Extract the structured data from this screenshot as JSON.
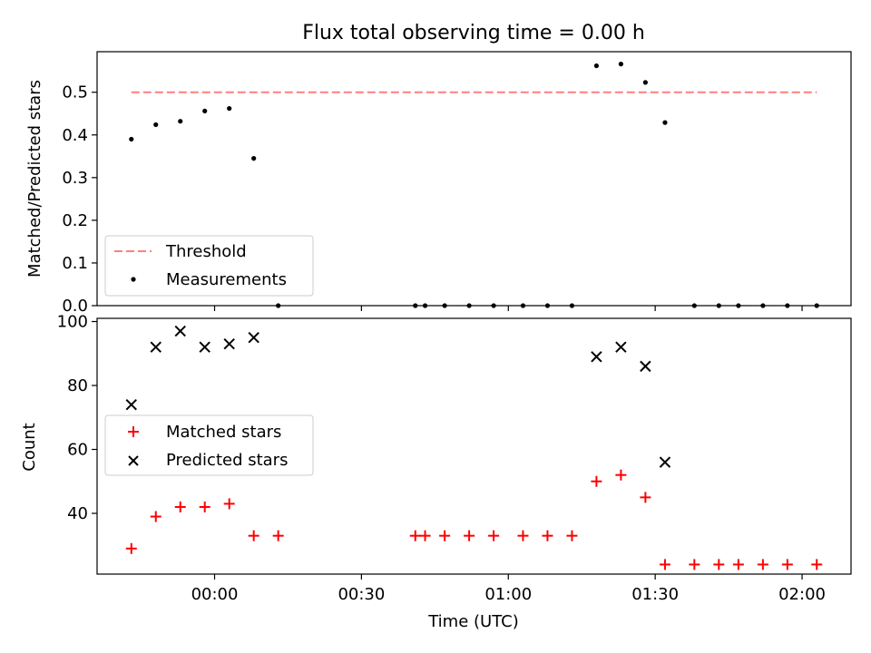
{
  "chart_data": [
    {
      "type": "scatter",
      "title": "Flux total observing time = 0.00 h",
      "xlabel": "",
      "ylabel": "Matched/Predicted stars",
      "ylim": [
        0,
        0.595
      ],
      "yticks": [
        "0.0",
        "0.1",
        "0.2",
        "0.3",
        "0.4",
        "0.5"
      ],
      "ytick_values": [
        0,
        0.1,
        0.2,
        0.3,
        0.4,
        0.5
      ],
      "legend_position": "lower-left",
      "series": [
        {
          "name": "Threshold",
          "kind": "dashed-line",
          "color": "#ff7f7f",
          "x": [
            "-00:17",
            "02:03"
          ],
          "y": [
            0.5,
            0.5
          ]
        },
        {
          "name": "Measurements",
          "kind": "dot",
          "color": "#000000",
          "x": [
            "-00:17",
            "-00:12",
            "-00:07",
            "-00:02",
            "00:03",
            "00:08",
            "00:13",
            "00:41",
            "00:43",
            "00:47",
            "00:52",
            "00:57",
            "01:03",
            "01:08",
            "01:13",
            "01:18",
            "01:23",
            "01:28",
            "01:32",
            "01:38",
            "01:43",
            "01:47",
            "01:52",
            "01:57",
            "02:03"
          ],
          "y": [
            0.39,
            0.424,
            0.432,
            0.456,
            0.462,
            0.345,
            0.0,
            0.0,
            0.0,
            0.0,
            0.0,
            0.0,
            0.0,
            0.0,
            0.0,
            0.562,
            0.566,
            0.523,
            0.429,
            0.0,
            0.0,
            0.0,
            0.0,
            0.0,
            0.0
          ]
        }
      ]
    },
    {
      "type": "scatter",
      "title": "",
      "xlabel": "Time (UTC)",
      "ylabel": "Count",
      "ylim": [
        21,
        101
      ],
      "yticks": [
        "40",
        "60",
        "80",
        "100"
      ],
      "ytick_values": [
        40,
        60,
        80,
        100
      ],
      "xticks": [
        "00:00",
        "00:30",
        "01:00",
        "01:30",
        "02:00"
      ],
      "xtick_minutes": [
        0,
        30,
        60,
        90,
        120
      ],
      "xlim_minutes": [
        -24,
        130
      ],
      "legend_position": "center-left",
      "series": [
        {
          "name": "Matched stars",
          "kind": "plus",
          "color": "#ff0000",
          "x": [
            "-00:17",
            "-00:12",
            "-00:07",
            "-00:02",
            "00:03",
            "00:08",
            "00:13",
            "00:41",
            "00:43",
            "00:47",
            "00:52",
            "00:57",
            "01:03",
            "01:08",
            "01:13",
            "01:18",
            "01:23",
            "01:28",
            "01:32",
            "01:38",
            "01:43",
            "01:47",
            "01:52",
            "01:57",
            "02:03"
          ],
          "y": [
            29,
            39,
            42,
            42,
            43,
            33,
            33,
            33,
            33,
            33,
            33,
            33,
            33,
            33,
            33,
            50,
            52,
            45,
            24,
            24,
            24,
            24,
            24,
            24,
            24
          ]
        },
        {
          "name": "Predicted stars",
          "kind": "x",
          "color": "#000000",
          "x": [
            "-00:17",
            "-00:12",
            "-00:07",
            "-00:02",
            "00:03",
            "00:08",
            "01:18",
            "01:23",
            "01:28",
            "01:32"
          ],
          "y": [
            74,
            92,
            97,
            92,
            93,
            95,
            89,
            92,
            86,
            56
          ]
        }
      ]
    }
  ]
}
